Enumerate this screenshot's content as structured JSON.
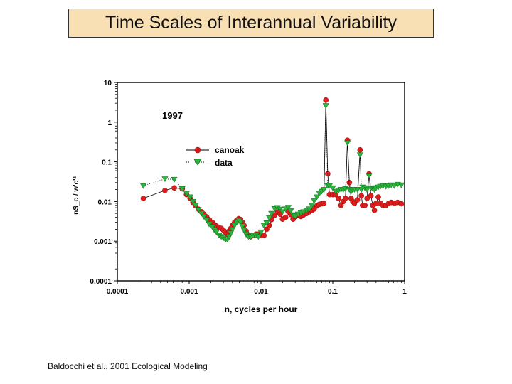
{
  "slide": {
    "title": "Time Scales of Interannual Variability",
    "credit": "Baldocchi et al., 2001 Ecological Modeling",
    "title_bg_color": "#f9dfb4"
  },
  "chart_data": {
    "type": "scatter",
    "annotation": "1997",
    "xlabel": "n, cycles per hour",
    "ylabel": "nS_c / w'c'²",
    "xscale": "log",
    "yscale": "log",
    "xlim": [
      0.0001,
      1
    ],
    "ylim": [
      0.0001,
      10
    ],
    "x_ticks": [
      "0.0001",
      "0.001",
      "0.01",
      "0.1",
      "1"
    ],
    "y_ticks": [
      "0.0001",
      "0.001",
      "0.01",
      "0.1",
      "1",
      "10"
    ],
    "grid": false,
    "legend_position": "upper-left",
    "series": [
      {
        "name": "canoak",
        "marker": "circle",
        "color": "#dd1c1c",
        "line": "solid",
        "points": [
          [
            0.00023,
            0.012
          ],
          [
            0.00046,
            0.019
          ],
          [
            0.00062,
            0.022
          ],
          [
            0.0008,
            0.021
          ],
          [
            0.00092,
            0.015
          ],
          [
            0.00103,
            0.012
          ],
          [
            0.00113,
            0.0095
          ],
          [
            0.00123,
            0.0078
          ],
          [
            0.00135,
            0.0064
          ],
          [
            0.00148,
            0.0055
          ],
          [
            0.0016,
            0.0048
          ],
          [
            0.00175,
            0.0041
          ],
          [
            0.0019,
            0.0035
          ],
          [
            0.0021,
            0.003
          ],
          [
            0.00225,
            0.0026
          ],
          [
            0.0024,
            0.0024
          ],
          [
            0.0026,
            0.0022
          ],
          [
            0.0028,
            0.0021
          ],
          [
            0.003,
            0.0019
          ],
          [
            0.0032,
            0.0017
          ],
          [
            0.0034,
            0.0015
          ],
          [
            0.0036,
            0.0018
          ],
          [
            0.0038,
            0.0021
          ],
          [
            0.004,
            0.0025
          ],
          [
            0.0043,
            0.003
          ],
          [
            0.0046,
            0.0034
          ],
          [
            0.0049,
            0.0037
          ],
          [
            0.0052,
            0.0035
          ],
          [
            0.0055,
            0.003
          ],
          [
            0.0058,
            0.0025
          ],
          [
            0.0062,
            0.0018
          ],
          [
            0.0067,
            0.0014
          ],
          [
            0.0072,
            0.0013
          ],
          [
            0.0078,
            0.0014
          ],
          [
            0.0085,
            0.0015
          ],
          [
            0.0092,
            0.0015
          ],
          [
            0.01,
            0.0014
          ],
          [
            0.011,
            0.0014
          ],
          [
            0.012,
            0.002
          ],
          [
            0.013,
            0.0025
          ],
          [
            0.014,
            0.0035
          ],
          [
            0.0155,
            0.0045
          ],
          [
            0.017,
            0.0055
          ],
          [
            0.0185,
            0.0048
          ],
          [
            0.02,
            0.0036
          ],
          [
            0.022,
            0.004
          ],
          [
            0.024,
            0.0055
          ],
          [
            0.026,
            0.0047
          ],
          [
            0.028,
            0.0036
          ],
          [
            0.03,
            0.0042
          ],
          [
            0.033,
            0.0046
          ],
          [
            0.036,
            0.0042
          ],
          [
            0.039,
            0.0046
          ],
          [
            0.043,
            0.005
          ],
          [
            0.047,
            0.0055
          ],
          [
            0.051,
            0.006
          ],
          [
            0.055,
            0.0065
          ],
          [
            0.06,
            0.0078
          ],
          [
            0.065,
            0.0085
          ],
          [
            0.07,
            0.0088
          ],
          [
            0.075,
            0.009
          ],
          [
            0.08,
            3.6
          ],
          [
            0.085,
            0.05
          ],
          [
            0.09,
            0.015
          ],
          [
            0.1,
            0.015
          ],
          [
            0.11,
            0.015
          ],
          [
            0.12,
            0.012
          ],
          [
            0.13,
            0.008
          ],
          [
            0.14,
            0.01
          ],
          [
            0.15,
            0.012
          ],
          [
            0.16,
            0.35
          ],
          [
            0.17,
            0.03
          ],
          [
            0.18,
            0.012
          ],
          [
            0.19,
            0.01
          ],
          [
            0.2,
            0.009
          ],
          [
            0.22,
            0.011
          ],
          [
            0.24,
            0.2
          ],
          [
            0.25,
            0.014
          ],
          [
            0.26,
            0.008
          ],
          [
            0.28,
            0.008
          ],
          [
            0.3,
            0.012
          ],
          [
            0.32,
            0.05
          ],
          [
            0.34,
            0.014
          ],
          [
            0.36,
            0.008
          ],
          [
            0.38,
            0.006
          ],
          [
            0.4,
            0.009
          ],
          [
            0.43,
            0.013
          ],
          [
            0.46,
            0.009
          ],
          [
            0.5,
            0.008
          ],
          [
            0.55,
            0.008
          ],
          [
            0.6,
            0.009
          ],
          [
            0.65,
            0.0095
          ],
          [
            0.72,
            0.009
          ],
          [
            0.8,
            0.0095
          ],
          [
            0.9,
            0.0088
          ]
        ]
      },
      {
        "name": "data",
        "marker": "triangle-down",
        "color": "#2bb33c",
        "line": "dotted",
        "points": [
          [
            0.00023,
            0.025
          ],
          [
            0.00046,
            0.037
          ],
          [
            0.00062,
            0.036
          ],
          [
            0.0008,
            0.021
          ],
          [
            0.00092,
            0.016
          ],
          [
            0.00103,
            0.013
          ],
          [
            0.00113,
            0.01
          ],
          [
            0.00123,
            0.008
          ],
          [
            0.00135,
            0.0062
          ],
          [
            0.00148,
            0.005
          ],
          [
            0.0016,
            0.0042
          ],
          [
            0.00175,
            0.0034
          ],
          [
            0.0019,
            0.0027
          ],
          [
            0.0021,
            0.0023
          ],
          [
            0.00225,
            0.0019
          ],
          [
            0.0024,
            0.0017
          ],
          [
            0.0026,
            0.0014
          ],
          [
            0.0028,
            0.0013
          ],
          [
            0.003,
            0.0012
          ],
          [
            0.0032,
            0.0011
          ],
          [
            0.0034,
            0.0011
          ],
          [
            0.0036,
            0.0013
          ],
          [
            0.0038,
            0.0016
          ],
          [
            0.004,
            0.002
          ],
          [
            0.0043,
            0.0025
          ],
          [
            0.0046,
            0.003
          ],
          [
            0.0049,
            0.0033
          ],
          [
            0.0052,
            0.003
          ],
          [
            0.0055,
            0.0024
          ],
          [
            0.0058,
            0.0019
          ],
          [
            0.0062,
            0.0015
          ],
          [
            0.0067,
            0.0013
          ],
          [
            0.0072,
            0.0013
          ],
          [
            0.0078,
            0.0014
          ],
          [
            0.0085,
            0.0014
          ],
          [
            0.0092,
            0.0013
          ],
          [
            0.01,
            0.0017
          ],
          [
            0.011,
            0.0025
          ],
          [
            0.012,
            0.0029
          ],
          [
            0.013,
            0.0039
          ],
          [
            0.014,
            0.005
          ],
          [
            0.0155,
            0.0066
          ],
          [
            0.017,
            0.007
          ],
          [
            0.0185,
            0.0064
          ],
          [
            0.02,
            0.0055
          ],
          [
            0.022,
            0.0065
          ],
          [
            0.024,
            0.0071
          ],
          [
            0.026,
            0.0058
          ],
          [
            0.028,
            0.0046
          ],
          [
            0.03,
            0.0043
          ],
          [
            0.033,
            0.0048
          ],
          [
            0.036,
            0.0052
          ],
          [
            0.039,
            0.0055
          ],
          [
            0.043,
            0.006
          ],
          [
            0.047,
            0.0065
          ],
          [
            0.051,
            0.008
          ],
          [
            0.055,
            0.0105
          ],
          [
            0.06,
            0.013
          ],
          [
            0.065,
            0.016
          ],
          [
            0.07,
            0.018
          ],
          [
            0.075,
            0.02
          ],
          [
            0.08,
            2.6
          ],
          [
            0.085,
            0.025
          ],
          [
            0.09,
            0.025
          ],
          [
            0.1,
            0.022
          ],
          [
            0.11,
            0.018
          ],
          [
            0.12,
            0.019
          ],
          [
            0.13,
            0.02
          ],
          [
            0.14,
            0.02
          ],
          [
            0.15,
            0.021
          ],
          [
            0.16,
            0.3
          ],
          [
            0.17,
            0.02
          ],
          [
            0.18,
            0.018
          ],
          [
            0.19,
            0.02
          ],
          [
            0.2,
            0.02
          ],
          [
            0.22,
            0.02
          ],
          [
            0.24,
            0.15
          ],
          [
            0.25,
            0.02
          ],
          [
            0.26,
            0.023
          ],
          [
            0.28,
            0.022
          ],
          [
            0.3,
            0.02
          ],
          [
            0.32,
            0.045
          ],
          [
            0.34,
            0.022
          ],
          [
            0.36,
            0.021
          ],
          [
            0.38,
            0.02
          ],
          [
            0.4,
            0.022
          ],
          [
            0.43,
            0.023
          ],
          [
            0.46,
            0.024
          ],
          [
            0.5,
            0.025
          ],
          [
            0.55,
            0.024
          ],
          [
            0.6,
            0.025
          ],
          [
            0.65,
            0.026
          ],
          [
            0.72,
            0.025
          ],
          [
            0.8,
            0.027
          ],
          [
            0.9,
            0.026
          ]
        ]
      }
    ]
  }
}
